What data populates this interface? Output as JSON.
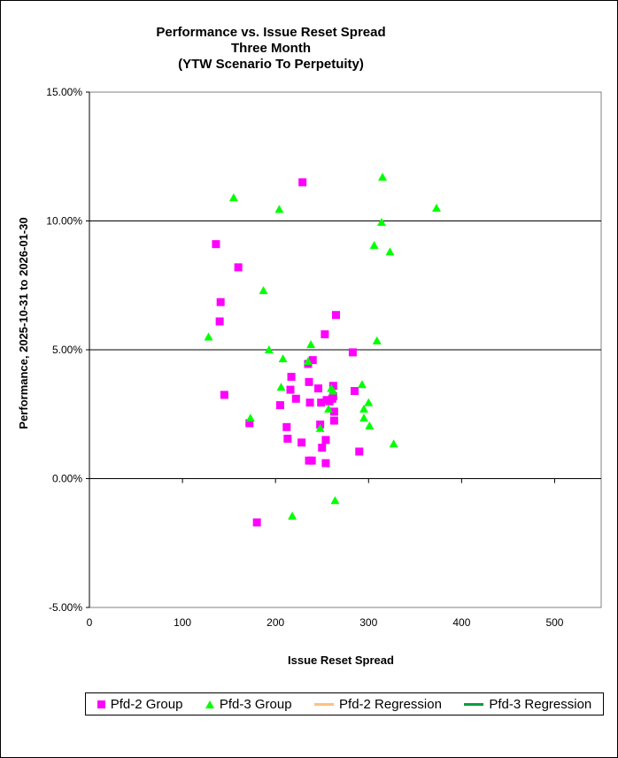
{
  "chart_data": {
    "type": "scatter",
    "title": [
      "Performance vs. Issue Reset Spread",
      "Three Month",
      "(YTW Scenario To Perpetuity)"
    ],
    "xlabel": "Issue  Reset Spread",
    "ylabel": "Performance, 2025-10-31  to 2026-01-30",
    "xlim": [
      0,
      550
    ],
    "ylim": [
      -5,
      15
    ],
    "x_ticks": [
      0,
      100,
      200,
      300,
      400,
      500
    ],
    "x_tick_labels": [
      "0",
      "100",
      "200",
      "300",
      "400",
      "500"
    ],
    "y_ticks": [
      -5,
      0,
      5,
      10,
      15
    ],
    "y_tick_labels": [
      "-5.00%",
      "0.00%",
      "5.00%",
      "10.00%",
      "15.00%"
    ],
    "grid": "horizontal major lines",
    "legend_placement": "bottom",
    "series": [
      {
        "name": "Pfd-2 Group",
        "marker": "square",
        "color": "#ff00ff",
        "points": [
          [
            136,
            9.1
          ],
          [
            141,
            6.85
          ],
          [
            140,
            6.1
          ],
          [
            145,
            3.25
          ],
          [
            160,
            8.2
          ],
          [
            172,
            2.15
          ],
          [
            180,
            -1.7
          ],
          [
            205,
            2.85
          ],
          [
            212,
            2.0
          ],
          [
            213,
            1.55
          ],
          [
            216,
            3.45
          ],
          [
            217,
            3.95
          ],
          [
            222,
            3.1
          ],
          [
            228,
            1.4
          ],
          [
            229,
            11.5
          ],
          [
            235,
            4.45
          ],
          [
            236,
            3.75
          ],
          [
            237,
            2.95
          ],
          [
            236,
            0.7
          ],
          [
            239,
            0.7
          ],
          [
            240,
            4.6
          ],
          [
            246,
            3.5
          ],
          [
            248,
            2.1
          ],
          [
            249,
            2.95
          ],
          [
            250,
            1.2
          ],
          [
            253,
            5.6
          ],
          [
            254,
            1.5
          ],
          [
            254,
            0.6
          ],
          [
            255,
            3.05
          ],
          [
            258,
            3.0
          ],
          [
            261,
            3.1
          ],
          [
            262,
            3.6
          ],
          [
            262,
            3.2
          ],
          [
            263,
            2.6
          ],
          [
            263,
            2.25
          ],
          [
            265,
            6.35
          ],
          [
            283,
            4.9
          ],
          [
            285,
            3.4
          ],
          [
            290,
            1.05
          ]
        ]
      },
      {
        "name": "Pfd-3 Group",
        "marker": "triangle",
        "color": "#00ff00",
        "points": [
          [
            128,
            5.5
          ],
          [
            155,
            10.9
          ],
          [
            173,
            2.35
          ],
          [
            187,
            7.3
          ],
          [
            193,
            5.0
          ],
          [
            204,
            10.45
          ],
          [
            206,
            3.55
          ],
          [
            208,
            4.65
          ],
          [
            218,
            -1.45
          ],
          [
            235,
            4.55
          ],
          [
            238,
            5.2
          ],
          [
            248,
            1.95
          ],
          [
            257,
            2.7
          ],
          [
            260,
            3.5
          ],
          [
            262,
            3.4
          ],
          [
            264,
            -0.85
          ],
          [
            293,
            3.65
          ],
          [
            295,
            2.7
          ],
          [
            295,
            2.35
          ],
          [
            300,
            2.95
          ],
          [
            301,
            2.05
          ],
          [
            306,
            9.05
          ],
          [
            309,
            5.35
          ],
          [
            314,
            9.95
          ],
          [
            315,
            11.7
          ],
          [
            323,
            8.8
          ],
          [
            327,
            1.35
          ],
          [
            373,
            10.5
          ]
        ]
      },
      {
        "name": "Pfd-2 Regression",
        "marker": "line",
        "color": "#ffc080",
        "points": []
      },
      {
        "name": "Pfd-3 Regression",
        "marker": "line",
        "color": "#00a040",
        "points": []
      }
    ]
  }
}
